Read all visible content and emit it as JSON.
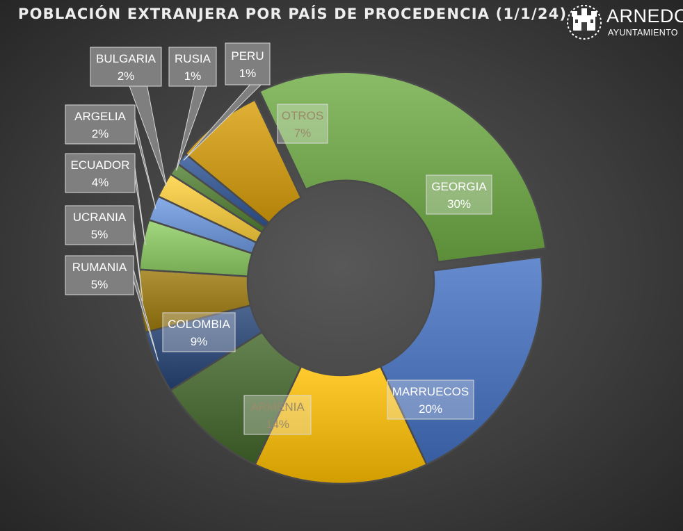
{
  "title": "POBLACIÓN EXTRANJERA POR PAÍS DE PROCEDENCIA (1/1/24)",
  "logo": {
    "name": "ARNEDO",
    "subtitle": "AYUNTAMIENTO",
    "icon": "town-crest-icon"
  },
  "chart_data": {
    "type": "pie",
    "variant": "doughnut",
    "unit": "%",
    "slices": [
      {
        "label": "GEORGIA",
        "value": 30,
        "display": "30%",
        "color": "#70ad47"
      },
      {
        "label": "MARRUECOS",
        "value": 20,
        "display": "20%",
        "color": "#4472c4"
      },
      {
        "label": "ARMENIA",
        "value": 14,
        "display": "14%",
        "color": "#ffc000"
      },
      {
        "label": "COLOMBIA",
        "value": 9,
        "display": "9%",
        "color": "#43682b"
      },
      {
        "label": "RUMANIA",
        "value": 5,
        "display": "5%",
        "color": "#264478"
      },
      {
        "label": "UCRANIA",
        "value": 5,
        "display": "5%",
        "color": "#9e7a0c"
      },
      {
        "label": "ECUADOR",
        "value": 4,
        "display": "4%",
        "color": "#8fce64"
      },
      {
        "label": "ARGELIA",
        "value": 2,
        "display": "2%",
        "color": "#6f9be3"
      },
      {
        "label": "BULGARIA",
        "value": 2,
        "display": "2%",
        "color": "#ffd23c"
      },
      {
        "label": "RUSIA",
        "value": 1,
        "display": "1%",
        "color": "#548235"
      },
      {
        "label": "PERU",
        "value": 1,
        "display": "1%",
        "color": "#2f5597"
      },
      {
        "label": "OTROS",
        "value": 7,
        "display": "7%",
        "color": "#d9a00a"
      }
    ],
    "legend": "none"
  }
}
